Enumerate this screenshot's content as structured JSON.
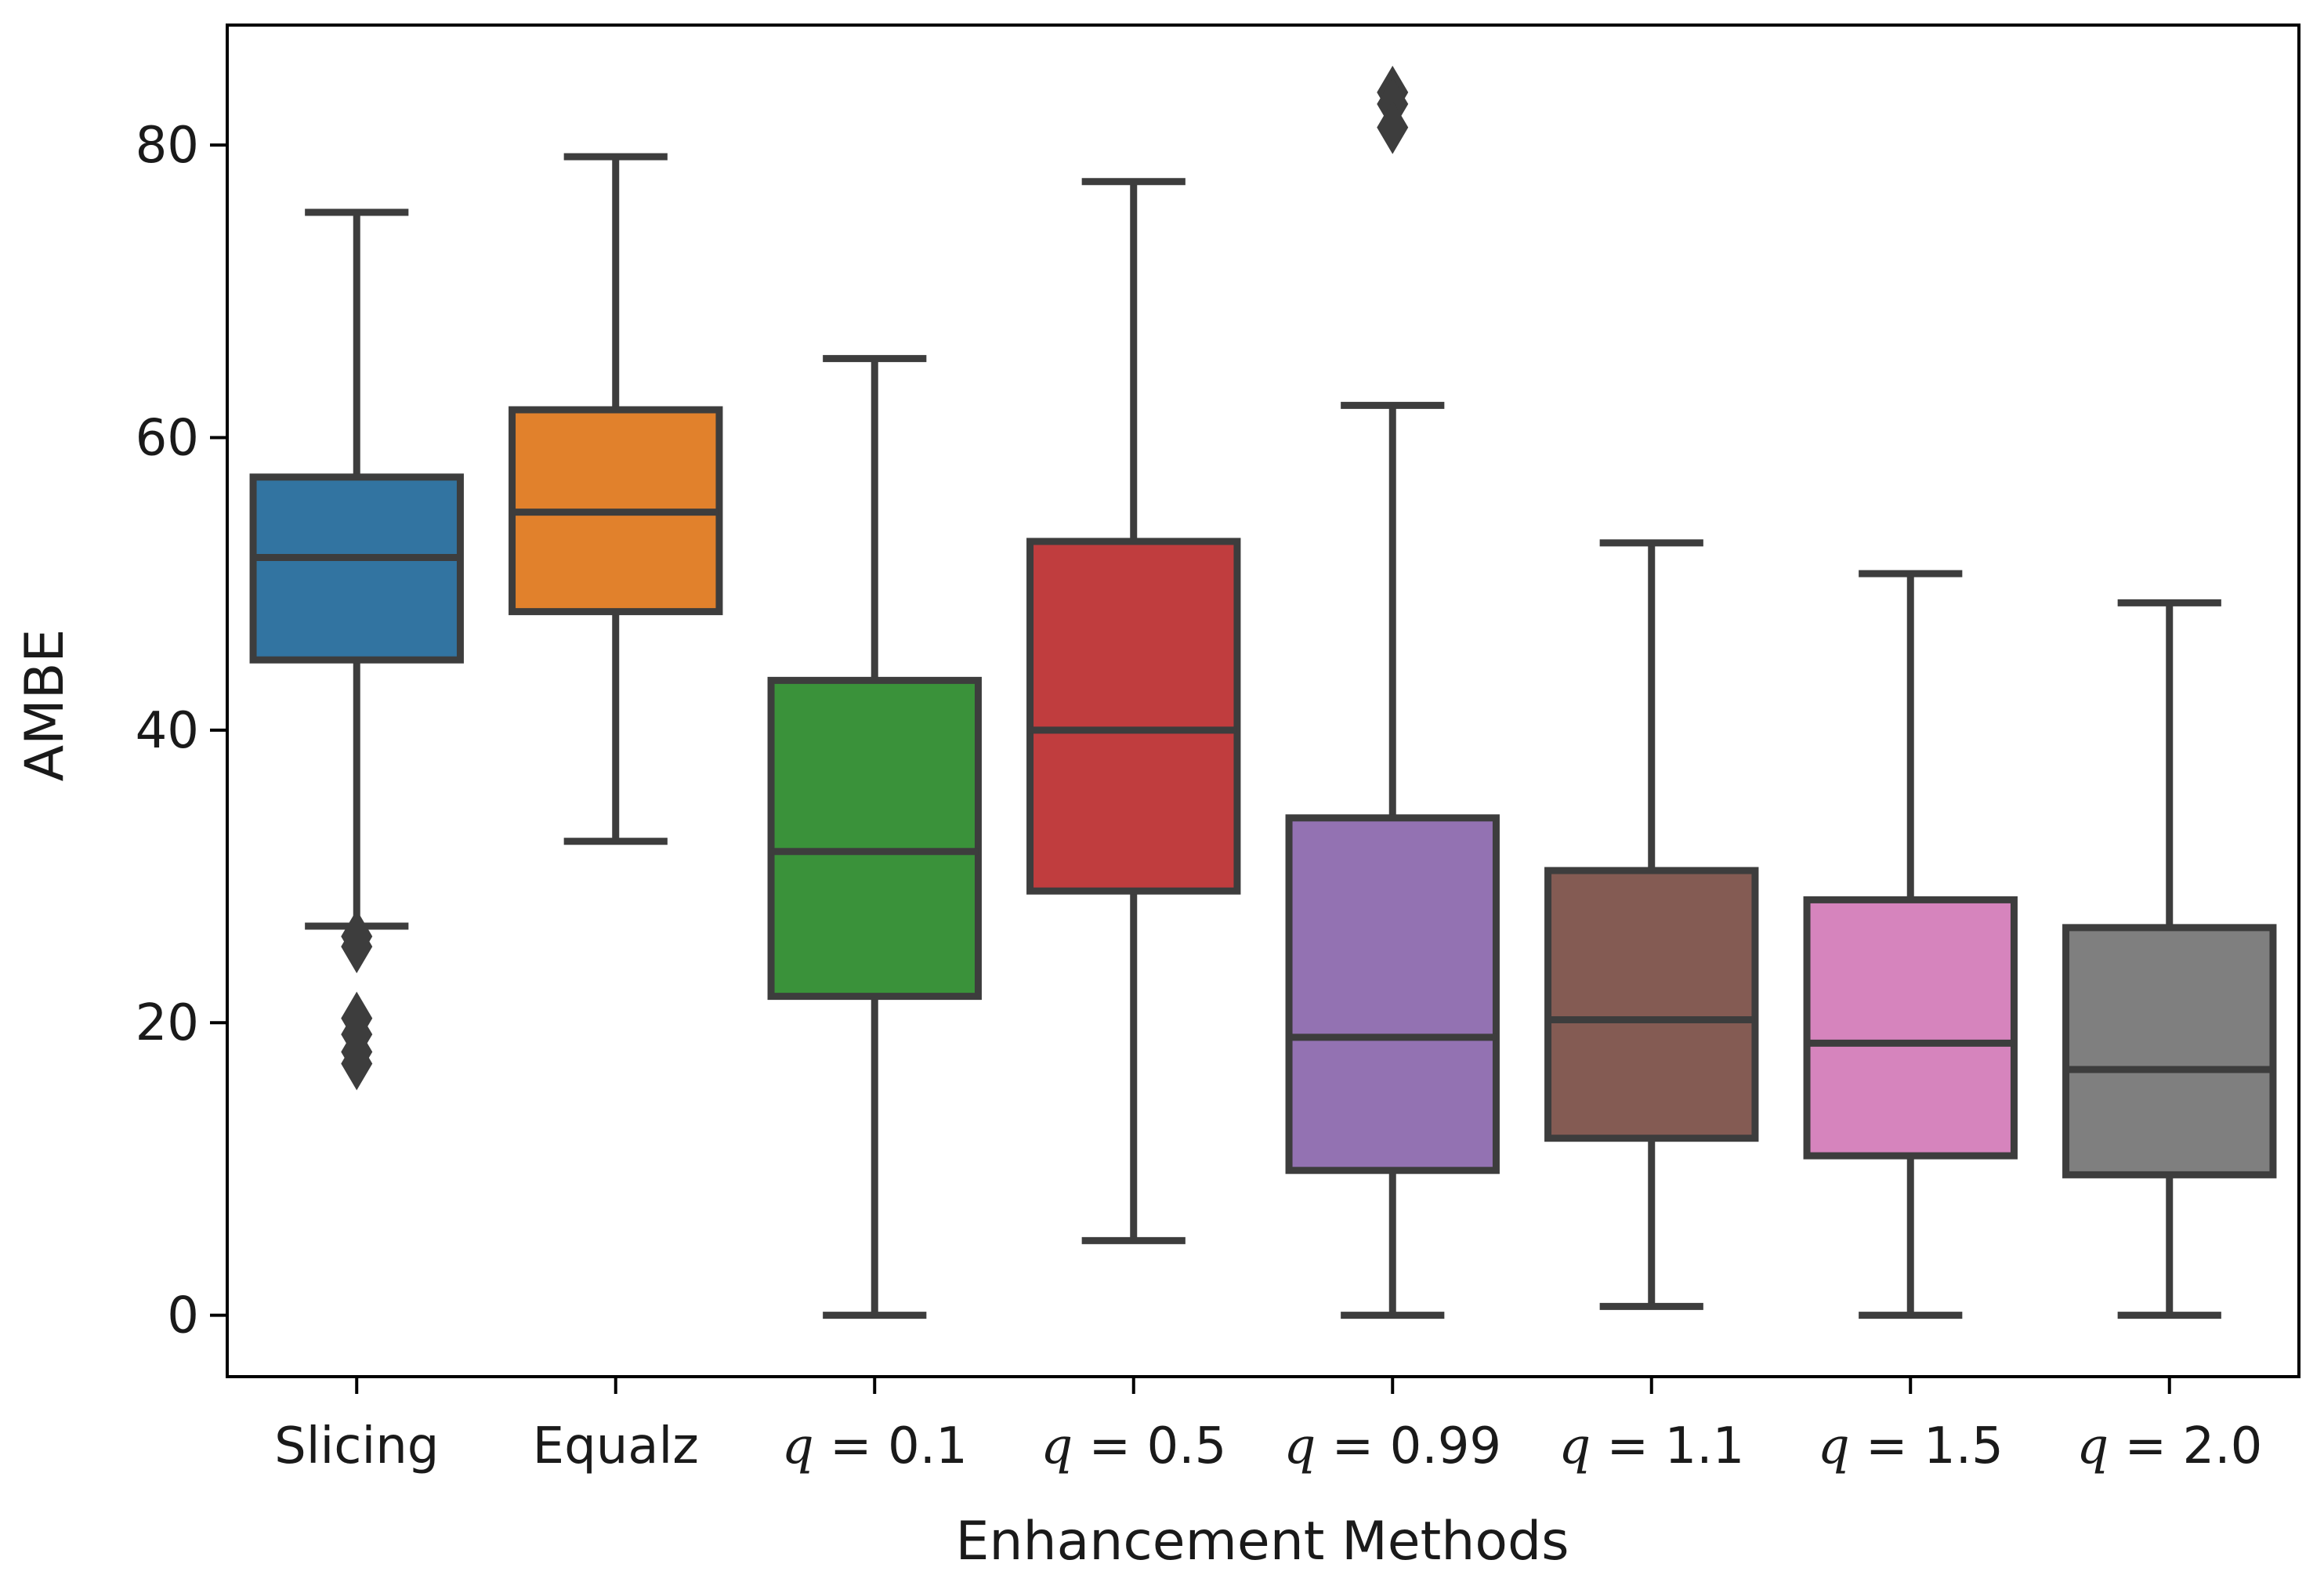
{
  "chart_data": {
    "type": "box",
    "title": "",
    "xlabel": "Enhancement Methods",
    "ylabel": "AMBE",
    "ylim": [
      -4.2,
      88.2
    ],
    "yticks": [
      0,
      20,
      40,
      60,
      80
    ],
    "grid": false,
    "legend": "none",
    "categories": [
      {
        "label": "Slicing",
        "prefix": "",
        "value_text": ""
      },
      {
        "label": "Equalz",
        "prefix": "",
        "value_text": ""
      },
      {
        "label": "q = 0.1",
        "prefix": "q",
        "value_text": " = 0.1"
      },
      {
        "label": "q = 0.5",
        "prefix": "q",
        "value_text": " = 0.5"
      },
      {
        "label": "q = 0.99",
        "prefix": "q",
        "value_text": " = 0.99"
      },
      {
        "label": "q = 1.1",
        "prefix": "q",
        "value_text": " = 1.1"
      },
      {
        "label": "q = 1.5",
        "prefix": "q",
        "value_text": " = 1.5"
      },
      {
        "label": "q = 2.0",
        "prefix": "q",
        "value_text": " = 2.0"
      }
    ],
    "boxes": [
      {
        "whislo": 26.6,
        "q1": 44.8,
        "med": 51.8,
        "q3": 57.3,
        "whishi": 75.4,
        "fliers": [
          25.2,
          25.9,
          20.3,
          19.2,
          18.0,
          17.2
        ],
        "color": "#3274a1"
      },
      {
        "whislo": 32.4,
        "q1": 48.1,
        "med": 54.9,
        "q3": 61.9,
        "whishi": 79.2,
        "fliers": [],
        "color": "#e1812c"
      },
      {
        "whislo": 0.0,
        "q1": 21.8,
        "med": 31.7,
        "q3": 43.4,
        "whishi": 65.4,
        "fliers": [],
        "color": "#3a923a"
      },
      {
        "whislo": 5.1,
        "q1": 29.0,
        "med": 40.0,
        "q3": 52.9,
        "whishi": 77.5,
        "fliers": [],
        "color": "#c03d3e"
      },
      {
        "whislo": 0.0,
        "q1": 9.9,
        "med": 19.0,
        "q3": 34.0,
        "whishi": 62.2,
        "fliers": [
          83.6,
          82.8,
          81.2
        ],
        "color": "#9372b2"
      },
      {
        "whislo": 0.6,
        "q1": 12.1,
        "med": 20.2,
        "q3": 30.4,
        "whishi": 52.8,
        "fliers": [],
        "color": "#845b53"
      },
      {
        "whislo": 0.0,
        "q1": 10.9,
        "med": 18.6,
        "q3": 28.4,
        "whishi": 50.7,
        "fliers": [],
        "color": "#d684bd"
      },
      {
        "whislo": 0.0,
        "q1": 9.6,
        "med": 16.8,
        "q3": 26.5,
        "whishi": 48.7,
        "fliers": [],
        "color": "#7f7f7f"
      }
    ]
  }
}
